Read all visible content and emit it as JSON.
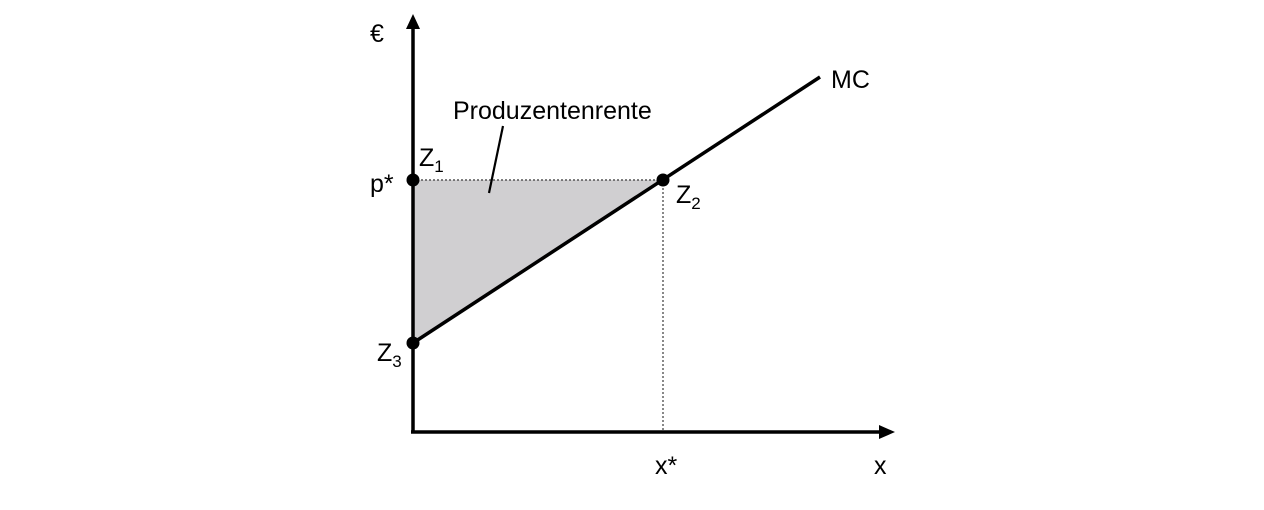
{
  "diagram": {
    "y_axis_label": "€",
    "x_axis_label": "x",
    "curve_label": "MC",
    "area_label": "Produzentenrente",
    "price_label": "p*",
    "quantity_label": "x*",
    "points": [
      {
        "base": "Z",
        "sub": "1"
      },
      {
        "base": "Z",
        "sub": "2"
      },
      {
        "base": "Z",
        "sub": "3"
      }
    ],
    "colors": {
      "axis": "#000000",
      "area_fill": "#d0cfd1",
      "guide_line": "#555555"
    }
  }
}
